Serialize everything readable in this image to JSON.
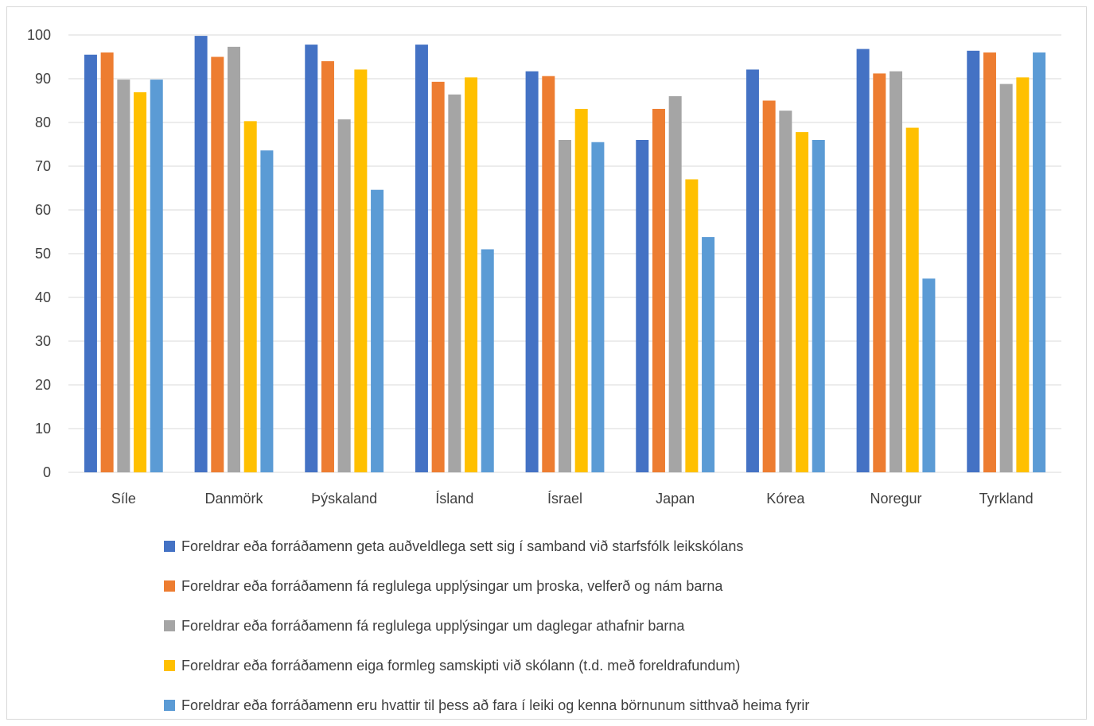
{
  "chart_data": {
    "type": "bar",
    "title": "",
    "xlabel": "",
    "ylabel": "",
    "ylim": [
      0,
      100
    ],
    "yticks": [
      0,
      10,
      20,
      30,
      40,
      50,
      60,
      70,
      80,
      90,
      100
    ],
    "grid": true,
    "legend_position": "bottom",
    "categories": [
      "Síle",
      "Danmörk",
      "Þýskaland",
      "Ísland",
      "Ísrael",
      "Japan",
      "Kórea",
      "Noregur",
      "Tyrkland"
    ],
    "series": [
      {
        "name": "Foreldrar eða forráðamenn geta auðveldlega sett sig í samband við starfsfólk leikskólans",
        "color": "#4472c4",
        "values": [
          95.5,
          99.8,
          97.8,
          97.8,
          91.7,
          76,
          92.1,
          96.8,
          96.4
        ]
      },
      {
        "name": "Foreldrar eða forráðamenn fá reglulega upplýsingar um þroska, velferð og nám barna",
        "color": "#ed7d31",
        "values": [
          96,
          95,
          94,
          89.3,
          90.6,
          83.1,
          85,
          91.2,
          96
        ]
      },
      {
        "name": "Foreldrar eða forráðamenn fá reglulega upplýsingar um daglegar athafnir barna",
        "color": "#a5a5a5",
        "values": [
          89.8,
          97.3,
          80.7,
          86.4,
          76,
          86,
          82.7,
          91.7,
          88.8
        ]
      },
      {
        "name": "Foreldrar eða forráðamenn eiga formleg samskipti við skólann (t.d. með foreldrafundum)",
        "color": "#ffc000",
        "values": [
          86.9,
          80.3,
          92.1,
          90.3,
          83.1,
          67,
          77.8,
          78.8,
          90.3
        ]
      },
      {
        "name": "Foreldrar eða forráðamenn eru hvattir til þess að fara í leiki og kenna börnunum sitthvað heima fyrir",
        "color": "#5b9bd5",
        "values": [
          89.8,
          73.6,
          64.6,
          51,
          75.5,
          53.8,
          76,
          44.3,
          96
        ]
      }
    ]
  }
}
